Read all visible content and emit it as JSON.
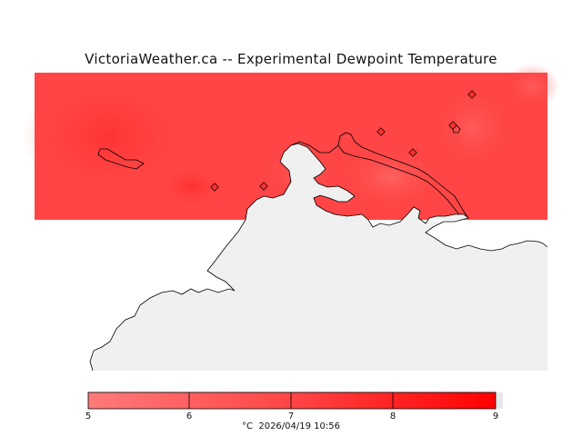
{
  "title": "VictoriaWeather.ca -- Experimental Dewpoint Temperature",
  "legend": {
    "ticks": [
      "5",
      "6",
      "7",
      "8",
      "9"
    ],
    "unit": "°C",
    "timestamp": "2026/04/19 10:56",
    "colors": [
      "#ff7f7f",
      "#ff6666",
      "#ff4c4c",
      "#ff2a2a",
      "#ff0000"
    ]
  },
  "colors": {
    "field": "#ff4545",
    "field_dark": "#ff3030",
    "field_light": "#ff5a5a",
    "land": "#f0f0f0",
    "coast": "#000000",
    "station": "#ff2f2f"
  },
  "stations": {
    "count": 7,
    "icon": "diamond-marker-icon"
  }
}
